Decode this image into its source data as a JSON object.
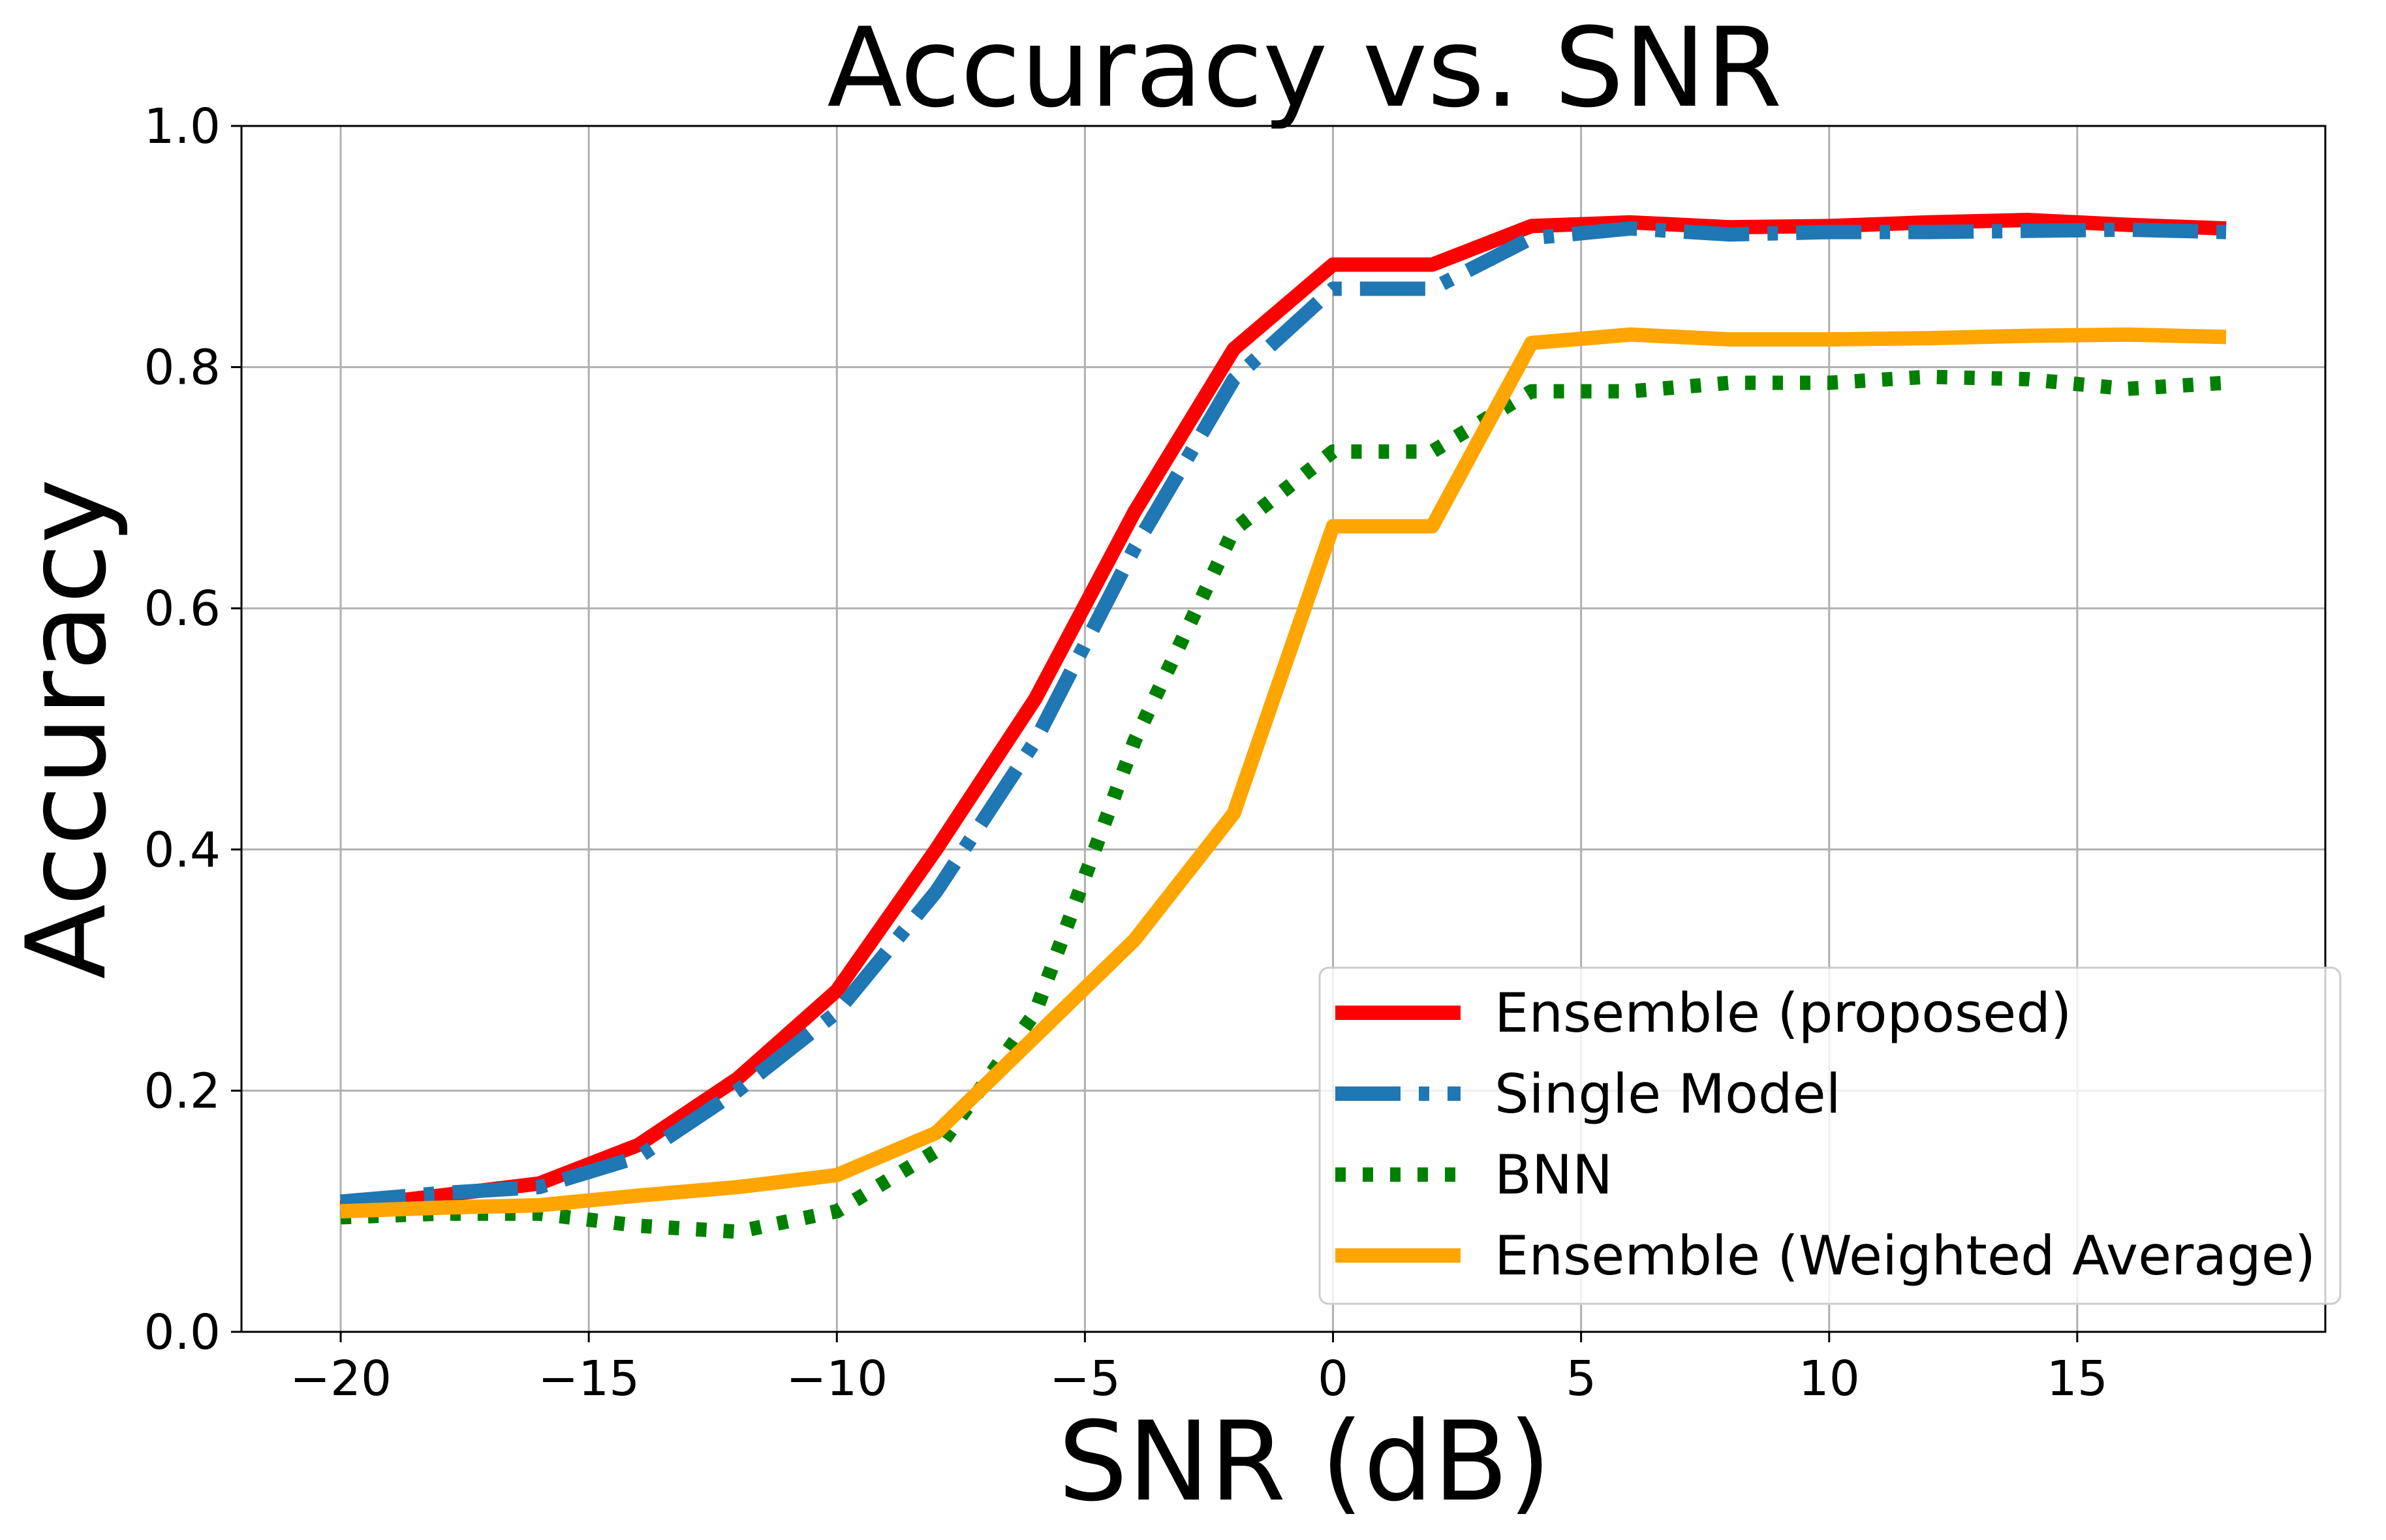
{
  "chart_data": {
    "type": "line",
    "title": "Accuracy vs. SNR",
    "xlabel": "SNR (dB)",
    "ylabel": "Accuracy",
    "xlim": [
      -22,
      20
    ],
    "ylim": [
      0.0,
      1.0
    ],
    "grid": true,
    "legend_position": "lower-right",
    "x_ticks": [
      -20,
      -15,
      -10,
      -5,
      0,
      5,
      10,
      15
    ],
    "x_tick_labels": [
      "−20",
      "−15",
      "−10",
      "−5",
      "0",
      "5",
      "10",
      "15"
    ],
    "y_ticks": [
      0.0,
      0.2,
      0.4,
      0.6,
      0.8,
      1.0
    ],
    "y_tick_labels": [
      "0.0",
      "0.2",
      "0.4",
      "0.6",
      "0.8",
      "1.0"
    ],
    "x": [
      -20,
      -18,
      -16,
      -14,
      -12,
      -10,
      -8,
      -6,
      -4,
      -2,
      0,
      2,
      4,
      6,
      8,
      10,
      12,
      14,
      16,
      18
    ],
    "series": [
      {
        "name": "Ensemble (proposed)",
        "color": "#ff0000",
        "style": "solid",
        "values": [
          0.103,
          0.113,
          0.123,
          0.155,
          0.21,
          0.283,
          0.4,
          0.525,
          0.68,
          0.815,
          0.885,
          0.885,
          0.917,
          0.92,
          0.916,
          0.917,
          0.92,
          0.922,
          0.918,
          0.915
        ]
      },
      {
        "name": "Single Model",
        "color": "#1f77b4",
        "style": "dashdot",
        "values": [
          0.108,
          0.115,
          0.12,
          0.145,
          0.2,
          0.265,
          0.365,
          0.49,
          0.65,
          0.79,
          0.865,
          0.865,
          0.907,
          0.915,
          0.91,
          0.912,
          0.912,
          0.913,
          0.914,
          0.912
        ]
      },
      {
        "name": "BNN",
        "color": "#008000",
        "style": "dotted",
        "values": [
          0.095,
          0.098,
          0.098,
          0.088,
          0.083,
          0.1,
          0.15,
          0.265,
          0.49,
          0.665,
          0.73,
          0.73,
          0.78,
          0.78,
          0.787,
          0.787,
          0.792,
          0.79,
          0.782,
          0.787
        ]
      },
      {
        "name": "Ensemble (Weighted Average)",
        "color": "#ffa500",
        "style": "solid",
        "values": [
          0.1,
          0.103,
          0.105,
          0.113,
          0.12,
          0.13,
          0.165,
          0.245,
          0.325,
          0.43,
          0.668,
          0.668,
          0.82,
          0.827,
          0.823,
          0.823,
          0.824,
          0.826,
          0.827,
          0.825
        ]
      }
    ]
  }
}
